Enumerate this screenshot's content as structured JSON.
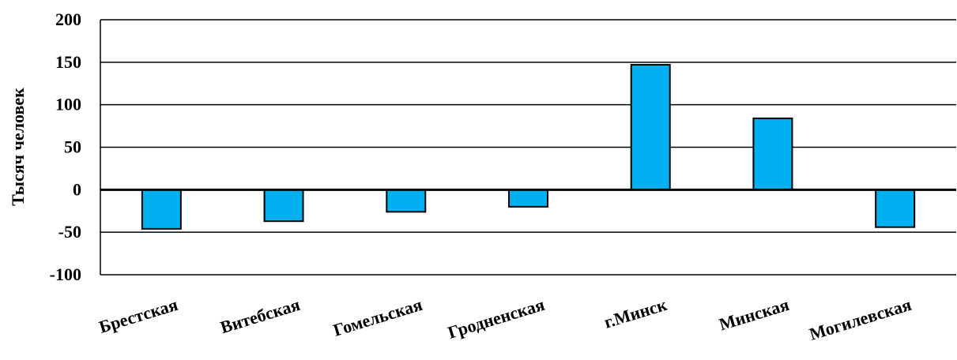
{
  "chart_data": {
    "type": "bar",
    "title": "",
    "xlabel": "",
    "ylabel": "Тысяч человек",
    "ylim": [
      -100,
      200
    ],
    "yticks": [
      200,
      150,
      100,
      50,
      0,
      -50,
      -100
    ],
    "grid": true,
    "legend": "none",
    "categories": [
      "Брестская",
      "Витебская",
      "Гомельская",
      "Гродненская",
      "г.Минск",
      "Минская",
      "Могилевская"
    ],
    "values": [
      -46,
      -37,
      -26,
      -20,
      147,
      84,
      -44
    ],
    "colors": {
      "bar": "#00b0f0",
      "bar_stroke": "#000000",
      "grid": "#000000",
      "zero_line": "#000000"
    }
  }
}
